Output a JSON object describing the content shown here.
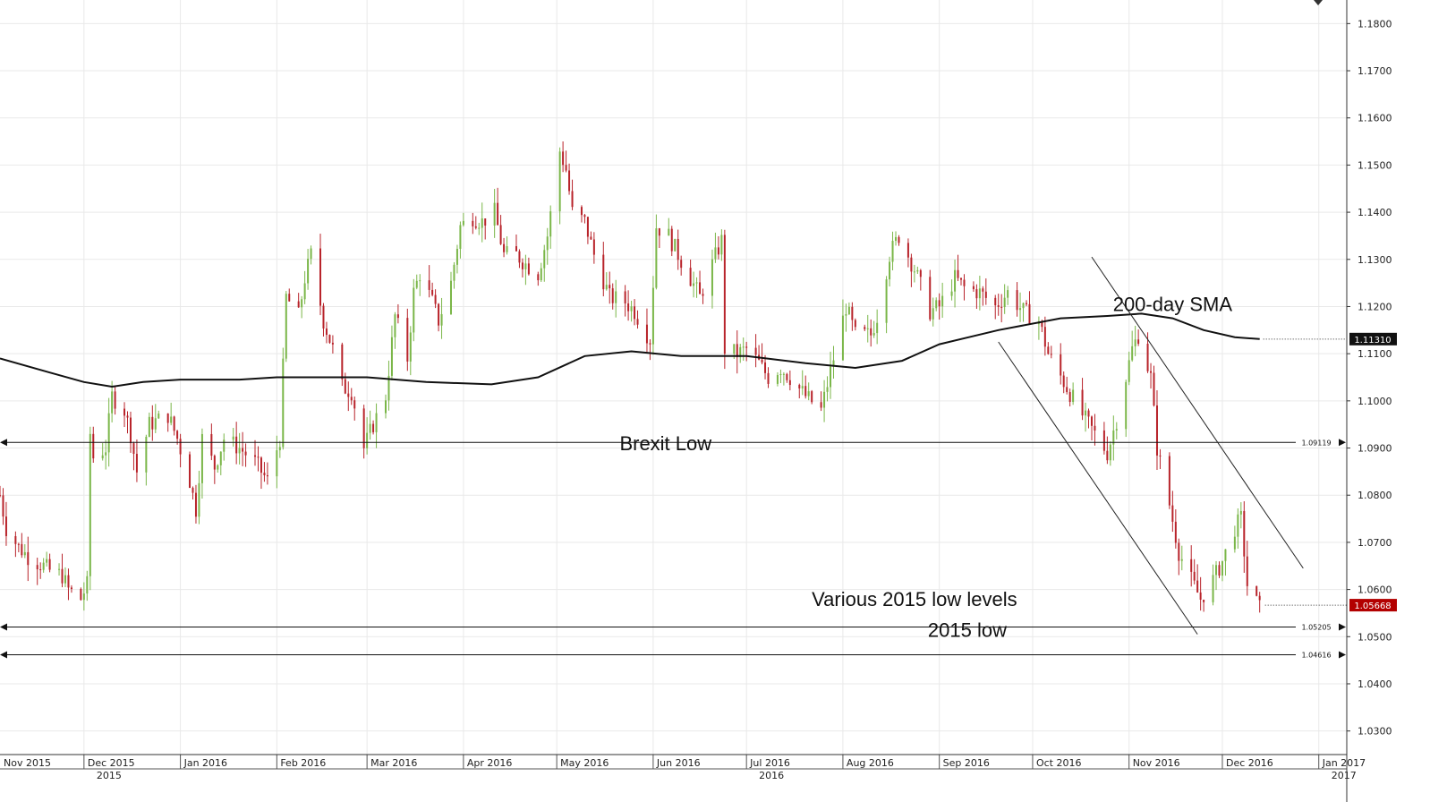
{
  "chart_data": {
    "type": "candlestick",
    "instrument_note": "",
    "colors": {
      "up": "#7ab648",
      "down": "#b8232a",
      "sma": "#111111",
      "grid": "#e9e9e9",
      "last_price_box": "#b30000",
      "sma_box": "#111111"
    },
    "ylim": [
      1.025,
      1.185
    ],
    "y_ticks": [
      "1.1800",
      "1.1700",
      "1.1600",
      "1.1500",
      "1.1400",
      "1.1300",
      "1.1200",
      "1.1100",
      "1.1000",
      "1.0900",
      "1.0800",
      "1.0700",
      "1.0600",
      "1.0500",
      "1.0400",
      "1.0300"
    ],
    "x_start": "2015-11-04",
    "x_end": "2017-01-10",
    "month_labels": [
      {
        "date": "2015-11-01",
        "label": "Nov 2015"
      },
      {
        "date": "2015-12-01",
        "label": "Dec 2015"
      },
      {
        "date": "2016-01-01",
        "label": "Jan 2016"
      },
      {
        "date": "2016-02-01",
        "label": "Feb 2016"
      },
      {
        "date": "2016-03-01",
        "label": "Mar 2016"
      },
      {
        "date": "2016-04-01",
        "label": "Apr 2016"
      },
      {
        "date": "2016-05-01",
        "label": "May 2016"
      },
      {
        "date": "2016-06-01",
        "label": "Jun 2016"
      },
      {
        "date": "2016-07-01",
        "label": "Jul 2016"
      },
      {
        "date": "2016-08-01",
        "label": "Aug 2016"
      },
      {
        "date": "2016-09-01",
        "label": "Sep 2016"
      },
      {
        "date": "2016-10-01",
        "label": "Oct 2016"
      },
      {
        "date": "2016-11-01",
        "label": "Nov 2016"
      },
      {
        "date": "2016-12-01",
        "label": "Dec 2016"
      },
      {
        "date": "2017-01-01",
        "label": "Jan 2017"
      }
    ],
    "year_labels": [
      {
        "date": "2015-12-01",
        "label": "2015"
      },
      {
        "date": "2016-07-01",
        "label": "2016"
      },
      {
        "date": "2017-01-01",
        "label": "2017"
      }
    ],
    "close_path": [
      [
        "2015-11-04",
        1.08
      ],
      [
        "2015-11-06",
        1.073
      ],
      [
        "2015-11-10",
        1.069
      ],
      [
        "2015-11-13",
        1.067
      ],
      [
        "2015-11-18",
        1.065
      ],
      [
        "2015-11-20",
        1.064
      ],
      [
        "2015-11-24",
        1.063
      ],
      [
        "2015-11-26",
        1.06
      ],
      [
        "2015-11-30",
        1.058
      ],
      [
        "2015-12-02",
        1.061
      ],
      [
        "2015-12-03",
        1.093
      ],
      [
        "2015-12-04",
        1.088
      ],
      [
        "2015-12-08",
        1.09
      ],
      [
        "2015-12-10",
        1.101
      ],
      [
        "2015-12-14",
        1.098
      ],
      [
        "2015-12-16",
        1.093
      ],
      [
        "2015-12-18",
        1.085
      ],
      [
        "2015-12-22",
        1.095
      ],
      [
        "2015-12-28",
        1.097
      ],
      [
        "2015-12-31",
        1.092
      ],
      [
        "2016-01-04",
        1.083
      ],
      [
        "2016-01-06",
        1.077
      ],
      [
        "2016-01-08",
        1.092
      ],
      [
        "2016-01-12",
        1.086
      ],
      [
        "2016-01-15",
        1.092
      ],
      [
        "2016-01-20",
        1.09
      ],
      [
        "2016-01-25",
        1.087
      ],
      [
        "2016-01-29",
        1.083
      ],
      [
        "2016-02-02",
        1.092
      ],
      [
        "2016-02-04",
        1.122
      ],
      [
        "2016-02-08",
        1.118
      ],
      [
        "2016-02-10",
        1.126
      ],
      [
        "2016-02-12",
        1.131
      ],
      [
        "2016-02-16",
        1.117
      ],
      [
        "2016-02-19",
        1.111
      ],
      [
        "2016-02-22",
        1.103
      ],
      [
        "2016-02-25",
        1.102
      ],
      [
        "2016-02-29",
        1.09
      ],
      [
        "2016-03-03",
        1.095
      ],
      [
        "2016-03-07",
        1.101
      ],
      [
        "2016-03-10",
        1.118
      ],
      [
        "2016-03-14",
        1.109
      ],
      [
        "2016-03-16",
        1.123
      ],
      [
        "2016-03-18",
        1.127
      ],
      [
        "2016-03-22",
        1.121
      ],
      [
        "2016-03-24",
        1.117
      ],
      [
        "2016-03-28",
        1.125
      ],
      [
        "2016-03-31",
        1.137
      ],
      [
        "2016-04-04",
        1.139
      ],
      [
        "2016-04-07",
        1.138
      ],
      [
        "2016-04-11",
        1.14
      ],
      [
        "2016-04-14",
        1.131
      ],
      [
        "2016-04-18",
        1.131
      ],
      [
        "2016-04-21",
        1.129
      ],
      [
        "2016-04-25",
        1.127
      ],
      [
        "2016-04-28",
        1.135
      ],
      [
        "2016-05-02",
        1.153
      ],
      [
        "2016-05-04",
        1.149
      ],
      [
        "2016-05-06",
        1.14
      ],
      [
        "2016-05-10",
        1.138
      ],
      [
        "2016-05-13",
        1.131
      ],
      [
        "2016-05-18",
        1.122
      ],
      [
        "2016-05-23",
        1.121
      ],
      [
        "2016-05-26",
        1.119
      ],
      [
        "2016-05-31",
        1.113
      ],
      [
        "2016-06-02",
        1.137
      ],
      [
        "2016-06-06",
        1.135
      ],
      [
        "2016-06-09",
        1.131
      ],
      [
        "2016-06-13",
        1.126
      ],
      [
        "2016-06-16",
        1.122
      ],
      [
        "2016-06-20",
        1.129
      ],
      [
        "2016-06-23",
        1.134
      ],
      [
        "2016-06-24",
        1.111
      ],
      [
        "2016-06-28",
        1.11
      ],
      [
        "2016-07-01",
        1.111
      ],
      [
        "2016-07-05",
        1.108
      ],
      [
        "2016-07-08",
        1.105
      ],
      [
        "2016-07-12",
        1.107
      ],
      [
        "2016-07-15",
        1.105
      ],
      [
        "2016-07-20",
        1.101
      ],
      [
        "2016-07-25",
        1.098
      ],
      [
        "2016-07-29",
        1.109
      ],
      [
        "2016-08-02",
        1.12
      ],
      [
        "2016-08-05",
        1.114
      ],
      [
        "2016-08-10",
        1.114
      ],
      [
        "2016-08-12",
        1.118
      ],
      [
        "2016-08-16",
        1.131
      ],
      [
        "2016-08-19",
        1.135
      ],
      [
        "2016-08-24",
        1.128
      ],
      [
        "2016-08-29",
        1.119
      ],
      [
        "2016-09-01",
        1.12
      ],
      [
        "2016-09-06",
        1.126
      ],
      [
        "2016-09-09",
        1.124
      ],
      [
        "2016-09-14",
        1.123
      ],
      [
        "2016-09-19",
        1.12
      ],
      [
        "2016-09-23",
        1.123
      ],
      [
        "2016-09-28",
        1.119
      ],
      [
        "2016-10-03",
        1.117
      ],
      [
        "2016-10-06",
        1.11
      ],
      [
        "2016-10-11",
        1.104
      ],
      [
        "2016-10-17",
        1.097
      ],
      [
        "2016-10-20",
        1.094
      ],
      [
        "2016-10-25",
        1.089
      ],
      [
        "2016-10-28",
        1.096
      ],
      [
        "2016-11-02",
        1.111
      ],
      [
        "2016-11-04",
        1.114
      ],
      [
        "2016-11-08",
        1.105
      ],
      [
        "2016-11-10",
        1.09
      ],
      [
        "2016-11-14",
        1.078
      ],
      [
        "2016-11-17",
        1.068
      ],
      [
        "2016-11-21",
        1.062
      ],
      [
        "2016-11-24",
        1.058
      ],
      [
        "2016-11-28",
        1.062
      ],
      [
        "2016-12-01",
        1.066
      ],
      [
        "2016-12-05",
        1.073
      ],
      [
        "2016-12-07",
        1.075
      ],
      [
        "2016-12-09",
        1.061
      ],
      [
        "2016-12-13",
        1.056
      ]
    ],
    "sma": [
      [
        "2015-11-04",
        1.109
      ],
      [
        "2015-11-20",
        1.106
      ],
      [
        "2015-12-01",
        1.104
      ],
      [
        "2015-12-10",
        1.103
      ],
      [
        "2015-12-20",
        1.104
      ],
      [
        "2016-01-01",
        1.1045
      ],
      [
        "2016-01-20",
        1.1045
      ],
      [
        "2016-02-01",
        1.105
      ],
      [
        "2016-02-20",
        1.105
      ],
      [
        "2016-03-01",
        1.105
      ],
      [
        "2016-03-20",
        1.104
      ],
      [
        "2016-04-10",
        1.1035
      ],
      [
        "2016-04-25",
        1.105
      ],
      [
        "2016-05-10",
        1.1095
      ],
      [
        "2016-05-25",
        1.1105
      ],
      [
        "2016-06-10",
        1.1095
      ],
      [
        "2016-07-01",
        1.1095
      ],
      [
        "2016-07-20",
        1.108
      ],
      [
        "2016-08-05",
        1.107
      ],
      [
        "2016-08-20",
        1.1085
      ],
      [
        "2016-09-01",
        1.112
      ],
      [
        "2016-09-20",
        1.115
      ],
      [
        "2016-10-10",
        1.1175
      ],
      [
        "2016-10-25",
        1.118
      ],
      [
        "2016-11-05",
        1.1185
      ],
      [
        "2016-11-15",
        1.1175
      ],
      [
        "2016-11-25",
        1.115
      ],
      [
        "2016-12-05",
        1.1135
      ],
      [
        "2016-12-13",
        1.1131
      ]
    ],
    "horizontal_levels": [
      {
        "value": 1.09119,
        "label": "1.09119"
      },
      {
        "value": 1.05205,
        "label": "1.05205"
      },
      {
        "value": 1.04616,
        "label": "1.04616"
      }
    ],
    "channel_lines": [
      {
        "from": [
          "2016-09-20",
          1.1125
        ],
        "to": [
          "2016-11-23",
          1.0505
        ]
      },
      {
        "from": [
          "2016-10-20",
          1.1305
        ],
        "to": [
          "2016-12-27",
          1.0645
        ]
      }
    ],
    "annotations": [
      {
        "text": "Brexit Low",
        "at": [
          "2016-06-05",
          1.0895
        ]
      },
      {
        "text": "Various 2015 low levels",
        "at": [
          "2016-08-24",
          1.0565
        ]
      },
      {
        "text": "2015 low",
        "at": [
          "2016-09-10",
          1.05
        ]
      },
      {
        "text": "200-day SMA",
        "at": [
          "2016-11-15",
          1.119
        ]
      }
    ],
    "last_price_box": {
      "value": 1.05668,
      "label": "1.05668"
    },
    "sma_box": {
      "value": 1.1131,
      "label": "1.11310"
    }
  }
}
